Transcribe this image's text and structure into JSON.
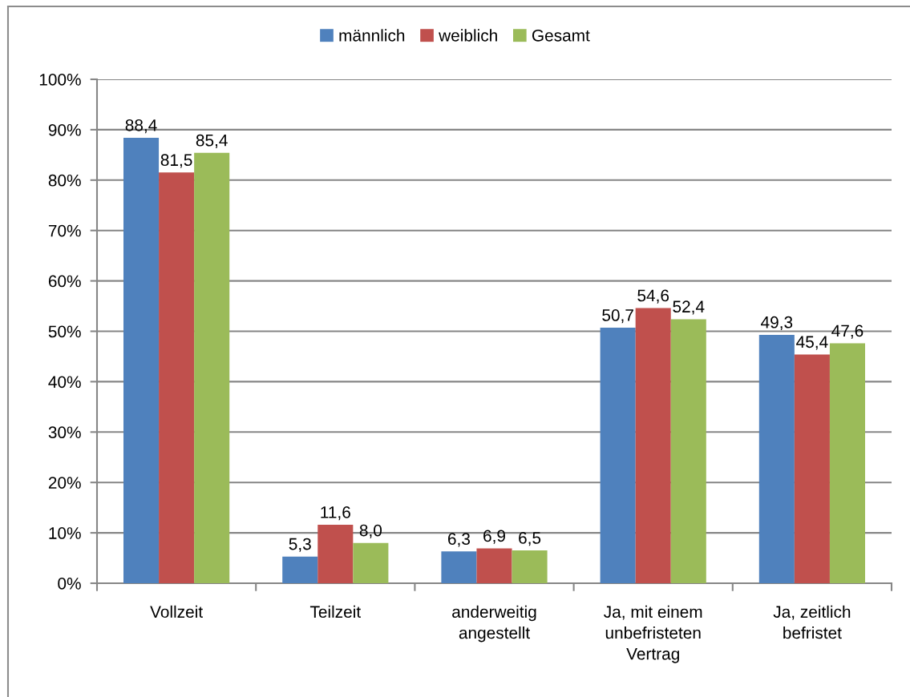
{
  "chart_data": {
    "type": "bar",
    "categories": [
      "Vollzeit",
      "Teilzeit",
      "anderweitig\nangestellt",
      "Ja, mit einem\nunbefristeten\nVertrag",
      "Ja, zeitlich\nbefristet"
    ],
    "series": [
      {
        "name": "männlich",
        "color": "#4f81bd",
        "values": [
          88.4,
          5.3,
          6.3,
          50.7,
          49.3
        ],
        "value_labels": [
          "88,4",
          "5,3",
          "6,3",
          "50,7",
          "49,3"
        ]
      },
      {
        "name": "weiblich",
        "color": "#c0504d",
        "values": [
          81.5,
          11.6,
          6.9,
          54.6,
          45.4
        ],
        "value_labels": [
          "81,5",
          "11,6",
          "6,9",
          "54,6",
          "45,4"
        ]
      },
      {
        "name": "Gesamt",
        "color": "#9bbb59",
        "values": [
          85.4,
          8.0,
          6.5,
          52.4,
          47.6
        ],
        "value_labels": [
          "85,4",
          "8,0",
          "6,5",
          "52,4",
          "47,6"
        ]
      }
    ],
    "ylim": [
      0,
      100
    ],
    "yticks": [
      {
        "value": 0,
        "label": "0%"
      },
      {
        "value": 10,
        "label": "10%"
      },
      {
        "value": 20,
        "label": "20%"
      },
      {
        "value": 30,
        "label": "30%"
      },
      {
        "value": 40,
        "label": "40%"
      },
      {
        "value": 50,
        "label": "50%"
      },
      {
        "value": 60,
        "label": "60%"
      },
      {
        "value": 70,
        "label": "70%"
      },
      {
        "value": 80,
        "label": "80%"
      },
      {
        "value": 90,
        "label": "90%"
      },
      {
        "value": 100,
        "label": "100%"
      }
    ],
    "grid": "y",
    "legend": "top"
  }
}
